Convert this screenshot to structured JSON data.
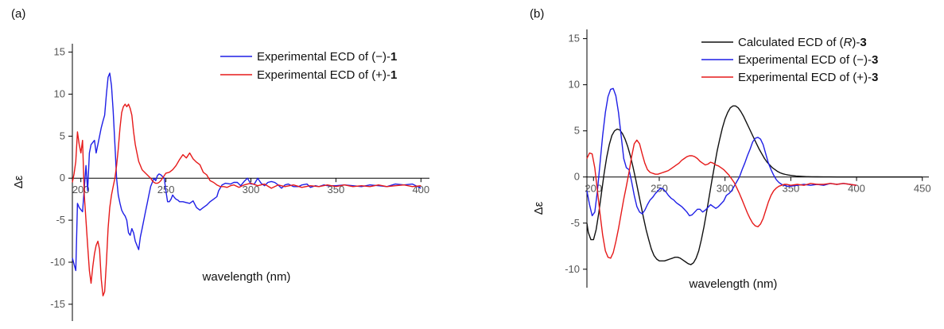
{
  "chart_data": [
    {
      "type": "line",
      "panel_label": "(a)",
      "xlabel": "wavelength (nm)",
      "ylabel": "Δε",
      "xlim": [
        195,
        405
      ],
      "ylim": [
        -17,
        16
      ],
      "xticks": [
        200,
        250,
        300,
        350,
        400
      ],
      "yticks": [
        15,
        10,
        5,
        0,
        -5,
        -10,
        -15
      ],
      "grid": false,
      "legend_position": "top-right",
      "series": [
        {
          "legend": [
            "Experimental ECD of (−)-",
            "1"
          ],
          "color": "#1f1fe6",
          "x": [
            195,
            197,
            198,
            199,
            201,
            203,
            204,
            205,
            206,
            208,
            209,
            211,
            212,
            213,
            214,
            215,
            216,
            217,
            218,
            219,
            220,
            221,
            222,
            223,
            224,
            225,
            226,
            227,
            228,
            229,
            230,
            231,
            232,
            233,
            234,
            235,
            236,
            237,
            238,
            239,
            240,
            241,
            242,
            243,
            244,
            245,
            246,
            247,
            248,
            249,
            250,
            251,
            252,
            253,
            254,
            255,
            256,
            257,
            258,
            260,
            262,
            264,
            266,
            268,
            270,
            272,
            274,
            276,
            278,
            280,
            281,
            283,
            285,
            288,
            290,
            292,
            294,
            296,
            298,
            300,
            302,
            304,
            306,
            308,
            310,
            312,
            314,
            316,
            318,
            320,
            322,
            325,
            328,
            330,
            333,
            335,
            338,
            340,
            343,
            345,
            350,
            355,
            360,
            365,
            370,
            375,
            380,
            385,
            390,
            395,
            400
          ],
          "y": [
            -9.5,
            -11.0,
            -3.0,
            -3.5,
            -4.0,
            1.5,
            -1.5,
            3.0,
            4.0,
            4.5,
            3.0,
            5.0,
            6.0,
            6.8,
            7.5,
            10.0,
            12.0,
            12.5,
            11.0,
            8.0,
            4.0,
            0.0,
            -2.0,
            -3.0,
            -3.8,
            -4.2,
            -4.5,
            -5.0,
            -6.5,
            -6.8,
            -6.0,
            -6.5,
            -7.5,
            -8.0,
            -8.5,
            -7.0,
            -6.0,
            -5.0,
            -4.0,
            -3.0,
            -2.0,
            -1.0,
            -0.5,
            0.0,
            -0.3,
            0.3,
            0.5,
            0.4,
            0.2,
            0.0,
            -1.5,
            -2.8,
            -2.8,
            -2.5,
            -2.0,
            -2.3,
            -2.5,
            -2.6,
            -2.8,
            -2.8,
            -2.9,
            -3.0,
            -2.7,
            -3.5,
            -3.8,
            -3.5,
            -3.2,
            -2.8,
            -2.5,
            -2.2,
            -1.5,
            -0.8,
            -0.6,
            -0.7,
            -0.5,
            -0.5,
            -0.9,
            -0.4,
            0.0,
            -0.7,
            -0.7,
            0.0,
            -0.6,
            -0.9,
            -0.5,
            -0.4,
            -0.5,
            -0.8,
            -1.2,
            -0.8,
            -0.7,
            -1.0,
            -1.0,
            -0.8,
            -0.7,
            -1.1,
            -0.9,
            -1.0,
            -0.8,
            -0.9,
            -0.9,
            -0.8,
            -0.9,
            -1.0,
            -0.8,
            -0.9,
            -1.0,
            -0.7,
            -0.8,
            -0.7,
            -1.2
          ]
        },
        {
          "legend": [
            "Experimental ECD of (+)-",
            "1"
          ],
          "color": "#e61a1a",
          "x": [
            195,
            196,
            197,
            198,
            199,
            200,
            201,
            202,
            203,
            204,
            205,
            206,
            207,
            208,
            209,
            210,
            211,
            212,
            213,
            214,
            215,
            216,
            217,
            218,
            219,
            220,
            221,
            222,
            223,
            224,
            225,
            226,
            227,
            228,
            229,
            230,
            231,
            232,
            233,
            234,
            235,
            236,
            237,
            238,
            239,
            240,
            241,
            242,
            243,
            244,
            245,
            246,
            247,
            248,
            249,
            250,
            252,
            254,
            256,
            258,
            260,
            262,
            264,
            266,
            268,
            270,
            272,
            274,
            276,
            278,
            280,
            282,
            284,
            286,
            288,
            290,
            293,
            296,
            300,
            304,
            308,
            312,
            316,
            320,
            325,
            330,
            335,
            340,
            345,
            350,
            355,
            360,
            365,
            370,
            375,
            380,
            385,
            390,
            395,
            400
          ],
          "y": [
            -0.5,
            0.5,
            2.0,
            5.5,
            4.0,
            3.0,
            4.5,
            -2.0,
            -5.0,
            -8.0,
            -11.0,
            -12.5,
            -10.5,
            -9.0,
            -8.0,
            -7.5,
            -8.5,
            -12.0,
            -14.0,
            -13.5,
            -10.0,
            -6.0,
            -3.5,
            -2.0,
            -1.0,
            0.0,
            1.5,
            3.5,
            6.0,
            7.8,
            8.5,
            8.8,
            8.5,
            8.8,
            8.3,
            7.5,
            5.5,
            4.0,
            3.0,
            2.0,
            1.5,
            1.0,
            0.8,
            0.6,
            0.4,
            0.2,
            0.0,
            -0.3,
            -0.5,
            -0.6,
            -0.6,
            -0.5,
            -0.3,
            0.0,
            0.3,
            0.6,
            0.7,
            1.0,
            1.5,
            2.2,
            2.8,
            2.4,
            3.0,
            2.3,
            1.9,
            1.6,
            0.7,
            0.4,
            -0.3,
            -0.5,
            -0.8,
            -1.0,
            -1.0,
            -1.1,
            -0.9,
            -0.8,
            -1.1,
            -0.8,
            -0.6,
            -0.9,
            -0.7,
            -1.2,
            -0.8,
            -1.0,
            -0.8,
            -1.1,
            -0.9,
            -1.0,
            -0.8,
            -1.0,
            -0.8,
            -1.0,
            -0.9,
            -1.0,
            -0.8,
            -1.0,
            -0.9,
            -0.8,
            -1.0,
            -0.9
          ]
        }
      ]
    },
    {
      "type": "line",
      "panel_label": "(b)",
      "xlabel": "wavelength (nm)",
      "ylabel": "Δε",
      "xlim": [
        195,
        455
      ],
      "ylim": [
        -12,
        16
      ],
      "xticks": [
        200,
        250,
        300,
        350,
        400,
        450
      ],
      "yticks": [
        15,
        10,
        5,
        0,
        -5,
        -10
      ],
      "grid": false,
      "legend_position": "top-right",
      "series": [
        {
          "legend": [
            "Calculated ECD of (",
            "R",
            ")-",
            "3"
          ],
          "color": "#111111",
          "x": [
            195,
            196,
            198,
            200,
            202,
            204,
            206,
            208,
            210,
            212,
            214,
            216,
            218,
            220,
            222,
            224,
            226,
            228,
            230,
            232,
            234,
            236,
            238,
            240,
            242,
            244,
            246,
            248,
            250,
            252,
            254,
            256,
            258,
            260,
            262,
            264,
            266,
            268,
            270,
            272,
            274,
            276,
            278,
            280,
            282,
            284,
            286,
            288,
            290,
            292,
            294,
            296,
            298,
            300,
            302,
            304,
            306,
            308,
            310,
            312,
            314,
            316,
            318,
            320,
            322,
            324,
            326,
            328,
            330,
            332,
            334,
            336,
            338,
            340,
            342,
            344,
            346,
            348,
            350,
            354,
            358,
            362,
            366,
            370,
            375,
            380,
            385,
            390,
            395,
            400,
            410,
            420,
            430,
            440,
            450
          ],
          "y": [
            -5.0,
            -6.0,
            -6.8,
            -6.8,
            -5.7,
            -3.9,
            -1.8,
            0.3,
            2.1,
            3.5,
            4.5,
            5.0,
            5.2,
            5.1,
            4.7,
            4.1,
            3.3,
            2.3,
            1.1,
            -0.2,
            -1.6,
            -3.0,
            -4.4,
            -5.7,
            -6.8,
            -7.8,
            -8.5,
            -8.9,
            -9.1,
            -9.1,
            -9.1,
            -9.0,
            -8.9,
            -8.8,
            -8.7,
            -8.7,
            -8.8,
            -9.0,
            -9.2,
            -9.4,
            -9.5,
            -9.3,
            -8.8,
            -8.0,
            -6.8,
            -5.4,
            -3.8,
            -2.1,
            -0.4,
            1.2,
            2.8,
            4.1,
            5.3,
            6.3,
            7.0,
            7.5,
            7.7,
            7.7,
            7.5,
            7.1,
            6.6,
            6.0,
            5.4,
            4.8,
            4.2,
            3.6,
            3.0,
            2.5,
            2.0,
            1.6,
            1.3,
            1.0,
            0.8,
            0.6,
            0.45,
            0.35,
            0.28,
            0.22,
            0.17,
            0.1,
            0.06,
            0.04,
            0.03,
            0.02,
            0.01,
            0.01,
            0.0,
            0.0,
            0.0,
            0.0,
            0.0,
            0.0,
            0.0,
            0.0,
            0.0
          ]
        },
        {
          "legend": [
            "Experimental ECD of (−)-",
            "3"
          ],
          "color": "#1f1fe6",
          "x": [
            195,
            197,
            199,
            201,
            203,
            205,
            207,
            209,
            211,
            213,
            215,
            217,
            219,
            221,
            223,
            225,
            227,
            229,
            231,
            233,
            235,
            237,
            239,
            241,
            243,
            245,
            247,
            249,
            251,
            253,
            255,
            257,
            259,
            261,
            263,
            265,
            267,
            269,
            271,
            273,
            275,
            277,
            279,
            281,
            283,
            285,
            287,
            289,
            291,
            293,
            295,
            297,
            299,
            301,
            303,
            305,
            307,
            309,
            311,
            313,
            315,
            317,
            319,
            321,
            323,
            325,
            327,
            329,
            331,
            333,
            335,
            337,
            339,
            341,
            343,
            345,
            347,
            350,
            355,
            360,
            365,
            370,
            375,
            380,
            385,
            390,
            395,
            400
          ],
          "y": [
            -1.5,
            -3.0,
            -4.2,
            -3.8,
            -1.5,
            1.5,
            4.5,
            7.0,
            8.7,
            9.5,
            9.6,
            8.8,
            7.0,
            4.5,
            2.0,
            1.0,
            0.8,
            -0.5,
            -2.0,
            -3.2,
            -3.8,
            -4.0,
            -3.6,
            -3.0,
            -2.5,
            -2.2,
            -1.8,
            -1.5,
            -1.2,
            -1.3,
            -1.6,
            -2.0,
            -2.3,
            -2.5,
            -2.8,
            -3.0,
            -3.2,
            -3.5,
            -3.8,
            -4.2,
            -4.1,
            -3.8,
            -3.5,
            -3.5,
            -3.8,
            -3.6,
            -3.3,
            -3.0,
            -3.2,
            -3.4,
            -3.2,
            -2.9,
            -2.6,
            -2.0,
            -1.8,
            -1.5,
            -1.0,
            -0.5,
            0.0,
            0.8,
            1.5,
            2.3,
            3.0,
            3.8,
            4.2,
            4.3,
            4.1,
            3.5,
            2.5,
            1.5,
            0.8,
            0.2,
            -0.3,
            -0.6,
            -0.8,
            -0.9,
            -1.0,
            -1.0,
            -0.9,
            -0.8,
            -0.9,
            -0.8,
            -0.9,
            -0.7,
            -0.8,
            -0.7,
            -0.8,
            -0.9
          ]
        },
        {
          "legend": [
            "Experimental ECD of (+)-",
            "3"
          ],
          "color": "#e61a1a",
          "x": [
            195,
            197,
            199,
            201,
            203,
            205,
            207,
            209,
            211,
            213,
            215,
            217,
            219,
            221,
            223,
            225,
            227,
            229,
            231,
            233,
            235,
            237,
            239,
            241,
            243,
            245,
            247,
            249,
            251,
            253,
            255,
            257,
            259,
            261,
            263,
            265,
            267,
            269,
            271,
            273,
            275,
            277,
            279,
            281,
            283,
            285,
            287,
            289,
            291,
            293,
            295,
            297,
            299,
            301,
            303,
            305,
            307,
            309,
            311,
            313,
            315,
            317,
            319,
            321,
            323,
            325,
            327,
            329,
            331,
            333,
            335,
            337,
            339,
            341,
            343,
            345,
            347,
            350,
            355,
            360,
            365,
            370,
            375,
            380,
            385,
            390,
            395,
            400
          ],
          "y": [
            2.0,
            2.6,
            2.5,
            1.0,
            -1.5,
            -4.0,
            -6.3,
            -8.0,
            -8.7,
            -8.8,
            -8.2,
            -7.0,
            -5.6,
            -4.0,
            -2.4,
            -1.0,
            0.5,
            2.2,
            3.6,
            4.0,
            3.6,
            2.5,
            1.5,
            0.8,
            0.5,
            0.4,
            0.3,
            0.3,
            0.4,
            0.5,
            0.6,
            0.7,
            0.9,
            1.1,
            1.3,
            1.5,
            1.8,
            2.0,
            2.2,
            2.3,
            2.3,
            2.2,
            2.0,
            1.7,
            1.5,
            1.3,
            1.4,
            1.6,
            1.5,
            1.3,
            1.2,
            1.0,
            0.8,
            0.5,
            0.2,
            -0.2,
            -0.6,
            -1.2,
            -1.8,
            -2.5,
            -3.2,
            -3.9,
            -4.5,
            -5.0,
            -5.3,
            -5.4,
            -5.1,
            -4.5,
            -3.6,
            -2.7,
            -2.0,
            -1.5,
            -1.2,
            -1.0,
            -0.9,
            -0.8,
            -0.8,
            -0.9,
            -0.8,
            -0.9,
            -0.7,
            -0.8,
            -0.8,
            -0.7,
            -0.8,
            -0.7,
            -0.8,
            -0.9
          ]
        }
      ]
    }
  ]
}
